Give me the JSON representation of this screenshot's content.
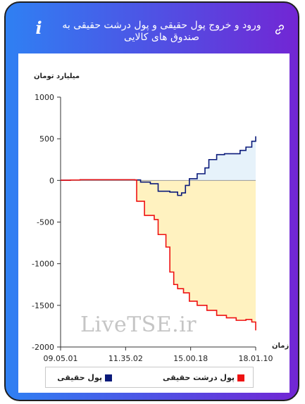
{
  "header": {
    "title": "ورود و خروج پول حقیقی و پول درشت حقیقی به صندوق های کالایی",
    "info_icon": "i",
    "link_icon_name": "link-icon"
  },
  "watermark": "LiveTSE.ir",
  "colors": {
    "real_money": "#0a1a7a",
    "retail_money": "#ee1111",
    "fill_positive": "#e6f2fa",
    "fill_negative": "#fff2c0"
  },
  "chart_data": {
    "type": "line",
    "ylabel": "میلیارد تومان",
    "xlabel": "زمان",
    "ylim": [
      -2000,
      1000
    ],
    "yticks": [
      1000,
      500,
      0,
      -500,
      -1000,
      -1500,
      -2000
    ],
    "x_tick_labels": [
      "09.05.01",
      "11.35.02",
      "15.00.18",
      "18.01.10"
    ],
    "grid": false,
    "legend_position": "bottom",
    "series": [
      {
        "name": "پول حقیقی",
        "color": "#0a1a7a",
        "points": [
          [
            0.0,
            2
          ],
          [
            0.05,
            5
          ],
          [
            0.1,
            8
          ],
          [
            0.2,
            8
          ],
          [
            0.3,
            8
          ],
          [
            0.38,
            6
          ],
          [
            0.41,
            -20
          ],
          [
            0.46,
            -40
          ],
          [
            0.5,
            -130
          ],
          [
            0.56,
            -140
          ],
          [
            0.6,
            -180
          ],
          [
            0.62,
            -150
          ],
          [
            0.64,
            -60
          ],
          [
            0.66,
            20
          ],
          [
            0.7,
            80
          ],
          [
            0.74,
            150
          ],
          [
            0.76,
            250
          ],
          [
            0.8,
            310
          ],
          [
            0.84,
            320
          ],
          [
            0.88,
            320
          ],
          [
            0.92,
            360
          ],
          [
            0.95,
            400
          ],
          [
            0.98,
            470
          ],
          [
            1.0,
            530
          ]
        ]
      },
      {
        "name": "پول درشت حقیقی",
        "color": "#ee1111",
        "points": [
          [
            0.0,
            2
          ],
          [
            0.05,
            5
          ],
          [
            0.1,
            8
          ],
          [
            0.2,
            8
          ],
          [
            0.3,
            8
          ],
          [
            0.38,
            6
          ],
          [
            0.39,
            -250
          ],
          [
            0.43,
            -420
          ],
          [
            0.48,
            -470
          ],
          [
            0.5,
            -650
          ],
          [
            0.54,
            -800
          ],
          [
            0.56,
            -1100
          ],
          [
            0.58,
            -1250
          ],
          [
            0.6,
            -1300
          ],
          [
            0.63,
            -1350
          ],
          [
            0.66,
            -1450
          ],
          [
            0.7,
            -1500
          ],
          [
            0.75,
            -1560
          ],
          [
            0.8,
            -1620
          ],
          [
            0.85,
            -1650
          ],
          [
            0.9,
            -1680
          ],
          [
            0.95,
            -1670
          ],
          [
            0.98,
            -1700
          ],
          [
            1.0,
            -1800
          ]
        ]
      }
    ]
  }
}
